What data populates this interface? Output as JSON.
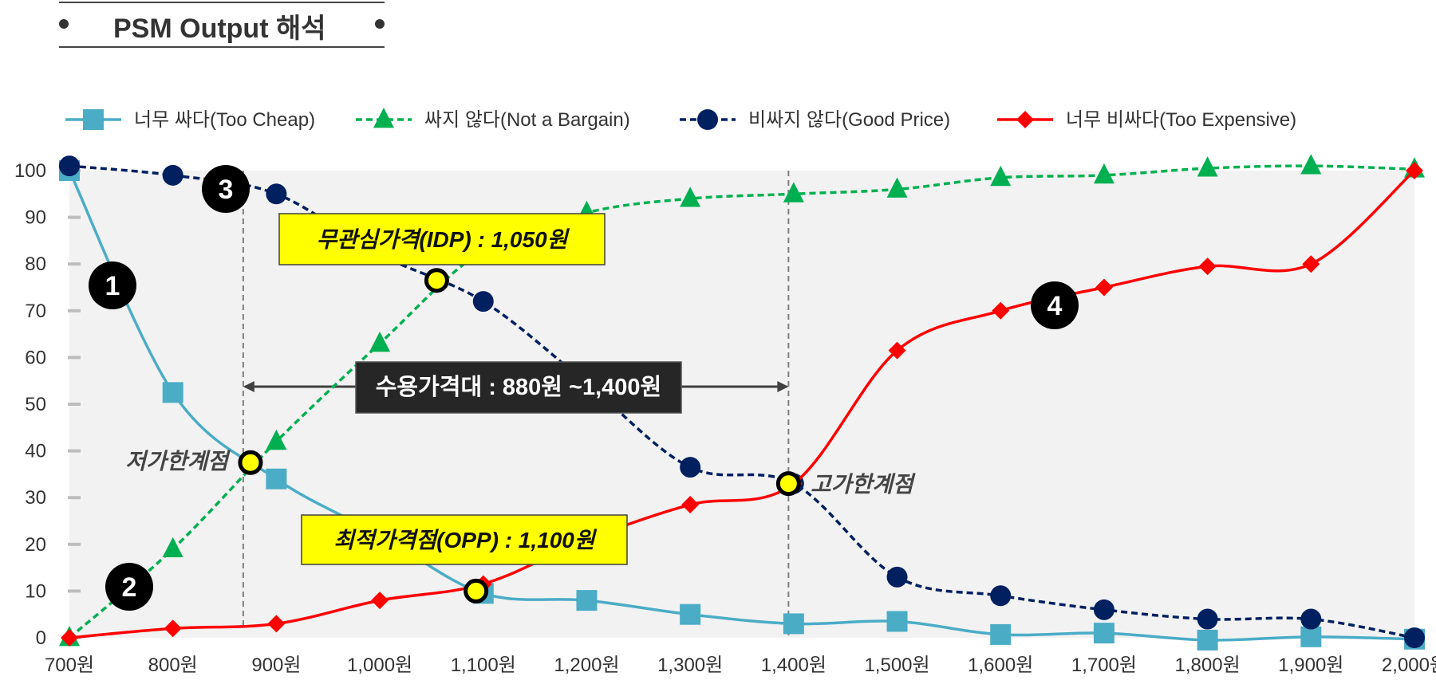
{
  "header": {
    "title": "PSM Output 해석"
  },
  "colors": {
    "too_cheap": "#4BACC6",
    "not_bargain": "#00B050",
    "good_price": "#002060",
    "too_expensive": "#FF0000",
    "plot_bg": "#F2F2F2",
    "highlight": "#FFFF00",
    "dark_box": "#262626"
  },
  "chart_data": {
    "type": "line",
    "categories": [
      "700원",
      "800원",
      "900원",
      "1,000원",
      "1,100원",
      "1,200원",
      "1,300원",
      "1,400원",
      "1,500원",
      "1,600원",
      "1,700원",
      "1,800원",
      "1,900원",
      "2,000원"
    ],
    "ylim": [
      0,
      100
    ],
    "yticks": [
      "0",
      "10",
      "20",
      "30",
      "40",
      "50",
      "60",
      "70",
      "80",
      "90",
      "100"
    ],
    "series": [
      {
        "name": "너무 싸다(Too Cheap)",
        "marker": "square",
        "dash": false,
        "values": [
          100,
          52.5,
          34,
          22,
          9.5,
          8,
          5,
          3,
          3.5,
          0.7,
          1,
          -0.5,
          0.2,
          -0.3
        ]
      },
      {
        "name": "싸지 않다(Not a Bargain)",
        "marker": "triangle",
        "dash": true,
        "values": [
          0,
          19,
          42,
          63,
          83,
          91,
          94,
          95,
          96,
          98.5,
          99,
          100.5,
          101,
          100.3
        ]
      },
      {
        "name": "비싸지 않다(Good Price)",
        "marker": "circle",
        "dash": true,
        "values": [
          101,
          99,
          95,
          82,
          72,
          54.5,
          36.5,
          33,
          13,
          9,
          6,
          4,
          4,
          0
        ]
      },
      {
        "name": "너무 비싸다(Too Expensive)",
        "marker": "diamond",
        "dash": false,
        "values": [
          0,
          2,
          3,
          8,
          11.5,
          21,
          28.5,
          33,
          61.5,
          70,
          75,
          79.5,
          80,
          100
        ]
      }
    ],
    "annotations": {
      "idp_label": "무관심가격(IDP) : 1,050원",
      "opp_label": "최적가격점(OPP) : 1,100원",
      "range_label": "수용가격대 : 880원 ~1,400원",
      "low_limit_label": "저가한계점",
      "high_limit_label": "고가한계점",
      "badges": [
        "1",
        "2",
        "3",
        "4"
      ]
    },
    "intersections": [
      {
        "name": "low-limit-point",
        "x_index": 1.75,
        "y": 37.5
      },
      {
        "name": "idp-point",
        "x_index": 3.55,
        "y": 76.5
      },
      {
        "name": "opp-point",
        "x_index": 3.93,
        "y": 10
      },
      {
        "name": "high-limit-point",
        "x_index": 6.95,
        "y": 33
      }
    ],
    "reference_lines": {
      "low_x_index": 1.68,
      "high_x_index": 6.95
    }
  }
}
